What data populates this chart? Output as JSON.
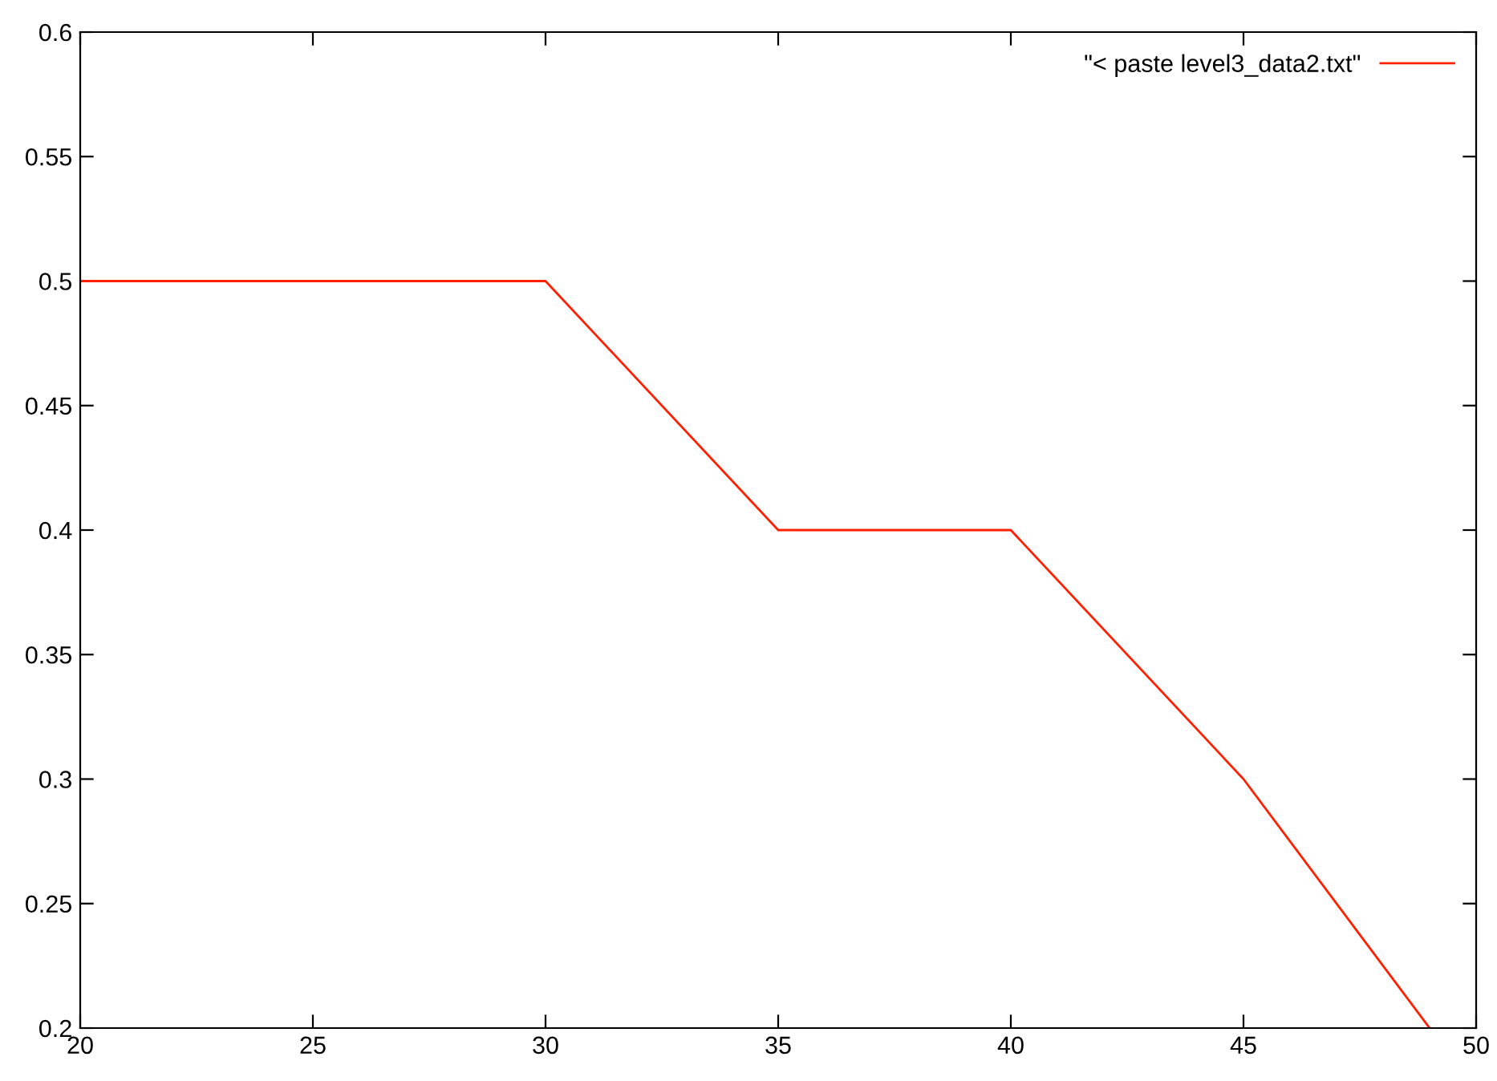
{
  "chart_data": {
    "type": "line",
    "x": [
      20,
      30,
      35,
      40,
      45,
      49
    ],
    "series": [
      {
        "name": "\"< paste level3_data2.txt\"",
        "color": "#ff2000",
        "values": [
          0.5,
          0.5,
          0.4,
          0.4,
          0.3,
          0.2
        ]
      }
    ],
    "xlim": [
      20,
      50
    ],
    "xticks": [
      20,
      25,
      30,
      35,
      40,
      45,
      50
    ],
    "ylim": [
      0.2,
      0.6
    ],
    "yticks": [
      0.2,
      0.25,
      0.3,
      0.35,
      0.4,
      0.45,
      0.5,
      0.55,
      0.6
    ],
    "grid": false,
    "legend": "top right",
    "marker": "none",
    "line_style": "solid"
  }
}
